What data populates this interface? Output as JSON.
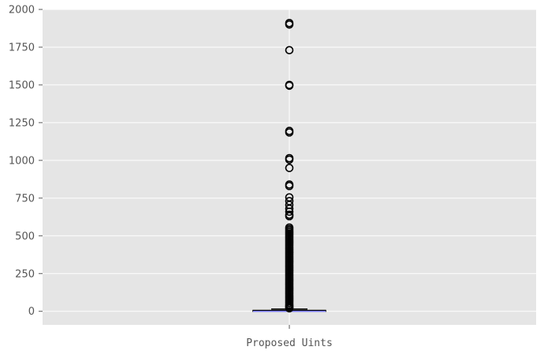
{
  "chart_data": {
    "type": "box",
    "categories": [
      "Proposed Uints"
    ],
    "ylim": [
      -90,
      2000
    ],
    "y_ticks": [
      0,
      250,
      500,
      750,
      1000,
      1250,
      1500,
      1750,
      2000
    ],
    "y_tick_labels": [
      "0",
      "250",
      "500",
      "750",
      "1000",
      "1250",
      "1500",
      "1750",
      "2000"
    ],
    "grid": true,
    "colors": {
      "plot_background": "#e5e5e5",
      "grid": "#ffffff",
      "median": "#7777ee",
      "box": "#000000",
      "outlier": "#000000",
      "tick_label": "#555555"
    },
    "boxes": [
      {
        "category": "Proposed Uints",
        "whisker_low": 0,
        "q1": 0,
        "median": 0,
        "q3": 6,
        "whisker_high": 15,
        "outliers": [
          1910,
          1900,
          1730,
          1500,
          1495,
          1195,
          1185,
          1015,
          1005,
          950,
          840,
          830,
          755,
          730,
          705,
          680,
          660,
          640,
          630,
          555,
          545,
          535,
          525,
          515,
          505,
          495,
          485,
          475,
          465,
          455,
          445,
          435,
          425,
          415,
          405,
          395,
          385,
          375,
          365,
          355,
          345,
          335,
          325,
          315,
          305,
          295,
          285,
          275,
          265,
          255,
          245,
          235,
          225,
          215,
          205,
          195,
          185,
          175,
          165,
          155,
          145,
          135,
          125,
          115,
          105,
          95,
          85,
          75,
          65,
          55,
          45,
          38,
          32,
          26,
          20
        ]
      }
    ]
  }
}
